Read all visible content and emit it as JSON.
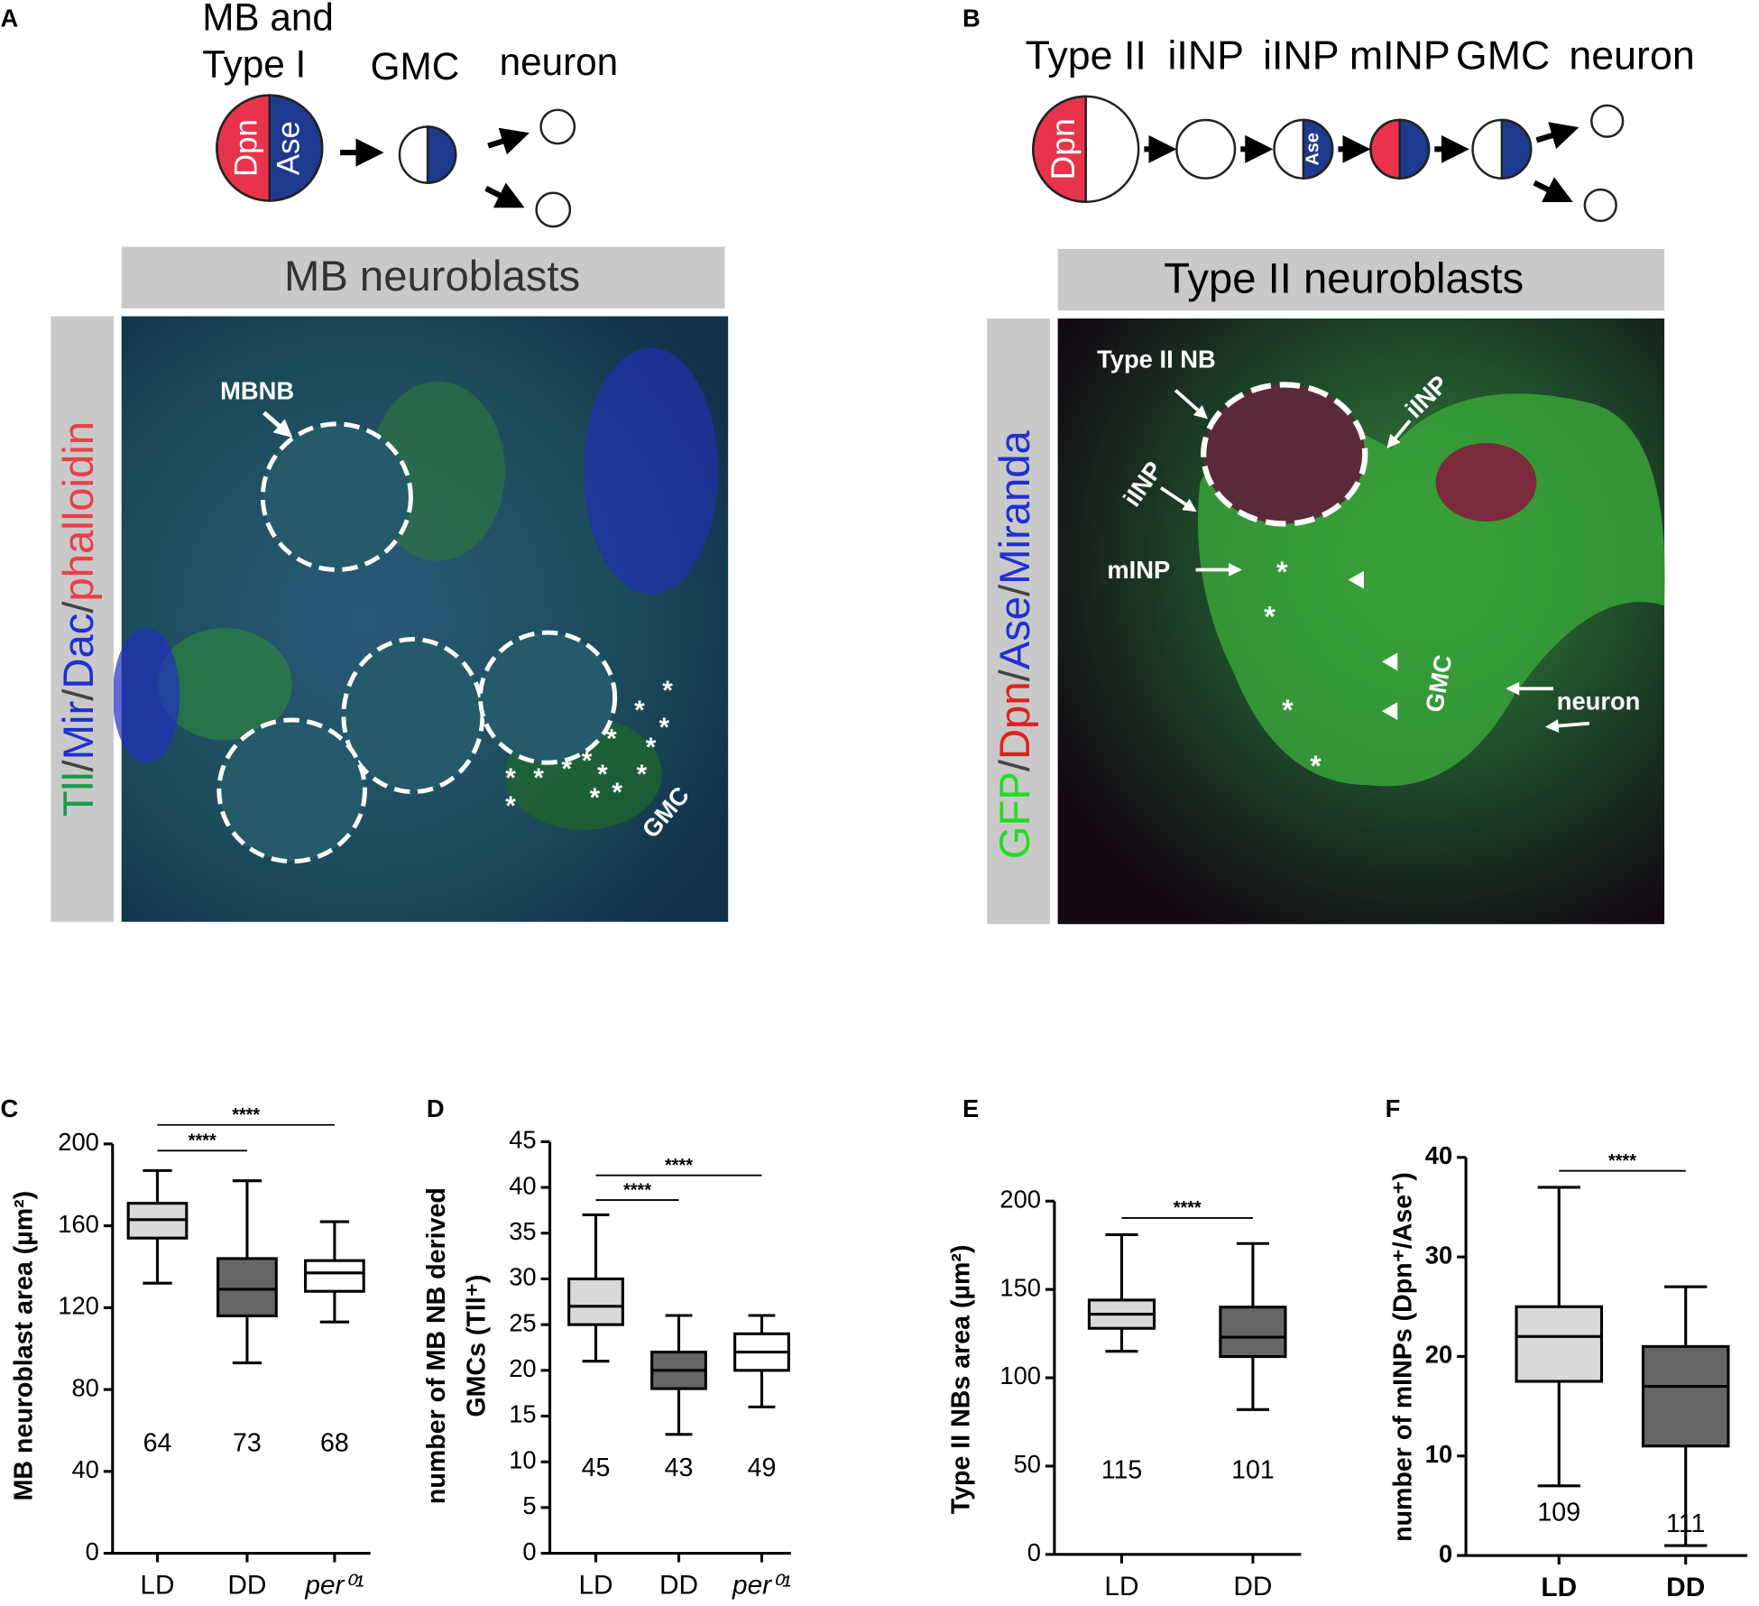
{
  "panels": {
    "A": {
      "letter": "A",
      "diagram": {
        "heading": [
          "MB and",
          "Type I"
        ],
        "cells": [
          "GMC",
          "neuron"
        ],
        "dpn": "Dpn",
        "ase": "Ase"
      },
      "banner": "MB neuroblasts",
      "stain": [
        {
          "text": "Tll",
          "color": "#1a9a4a"
        },
        {
          "text": "/",
          "color": "#444444"
        },
        {
          "text": "Mir",
          "color": "#1f2fd0"
        },
        {
          "text": "/",
          "color": "#444444"
        },
        {
          "text": "Dac",
          "color": "#1f2fd0"
        },
        {
          "text": "/",
          "color": "#444444"
        },
        {
          "text": "phalloidin",
          "color": "#e8404a"
        }
      ],
      "annotations": [
        "MBNB",
        "GMC"
      ],
      "marker": "*"
    },
    "B": {
      "letter": "B",
      "diagram": {
        "cells": [
          "Type II",
          "iINP",
          "iINP",
          "mINP",
          "GMC",
          "neuron"
        ],
        "dpn": "Dpn",
        "ase": "Ase"
      },
      "banner": "Type II neuroblasts",
      "stain": [
        {
          "text": "GFP",
          "color": "#22dd22"
        },
        {
          "text": "/",
          "color": "#444444"
        },
        {
          "text": "Dpn",
          "color": "#e02020"
        },
        {
          "text": "/",
          "color": "#444444"
        },
        {
          "text": "Ase",
          "color": "#2030d0"
        },
        {
          "text": "/",
          "color": "#444444"
        },
        {
          "text": "Miranda",
          "color": "#2030d0"
        }
      ],
      "annotations": [
        "Type II NB",
        "iINP",
        "iINP",
        "mINP",
        "GMC",
        "neuron"
      ],
      "marker": "*"
    }
  },
  "chart_data": [
    {
      "type": "box",
      "letter": "C",
      "ylabel": "MB neuroblast area (µm²)",
      "ylim": [
        0,
        200
      ],
      "yticks": [
        0,
        40,
        80,
        120,
        160,
        200
      ],
      "categories": [
        "LD",
        "DD",
        "per⁰¹"
      ],
      "boxes": [
        {
          "low": 132,
          "q1": 154,
          "median": 163,
          "q3": 171,
          "high": 187,
          "n": 64,
          "color": "#d9d9d9"
        },
        {
          "low": 93,
          "q1": 116,
          "median": 129,
          "q3": 144,
          "high": 182,
          "n": 73,
          "color": "#666666"
        },
        {
          "low": 113,
          "q1": 128,
          "median": 137,
          "q3": 143,
          "high": 162,
          "n": 68,
          "color": "#ffffff"
        }
      ],
      "significance": [
        {
          "between": [
            "LD",
            "DD"
          ],
          "label": "****"
        },
        {
          "between": [
            "LD",
            "per⁰¹"
          ],
          "label": "****"
        }
      ]
    },
    {
      "type": "box",
      "letter": "D",
      "ylabel": [
        "number of MB NB derived",
        "GMCs (Tll⁺)"
      ],
      "ylim": [
        0,
        45
      ],
      "yticks": [
        0,
        5,
        10,
        15,
        20,
        25,
        30,
        35,
        40,
        45
      ],
      "categories": [
        "LD",
        "DD",
        "per⁰¹"
      ],
      "boxes": [
        {
          "low": 21,
          "q1": 25,
          "median": 27,
          "q3": 30,
          "high": 37,
          "n": 45,
          "color": "#d9d9d9"
        },
        {
          "low": 13,
          "q1": 18,
          "median": 20,
          "q3": 22,
          "high": 26,
          "n": 43,
          "color": "#666666"
        },
        {
          "low": 16,
          "q1": 20,
          "median": 22,
          "q3": 24,
          "high": 26,
          "n": 49,
          "color": "#ffffff"
        }
      ],
      "significance": [
        {
          "between": [
            "LD",
            "DD"
          ],
          "label": "****"
        },
        {
          "between": [
            "LD",
            "per⁰¹"
          ],
          "label": "****"
        }
      ]
    },
    {
      "type": "box",
      "letter": "E",
      "ylabel": "Type II NBs area (µm²)",
      "ylim": [
        0,
        200
      ],
      "yticks": [
        0,
        50,
        100,
        150,
        200
      ],
      "categories": [
        "LD",
        "DD"
      ],
      "boxes": [
        {
          "low": 115,
          "q1": 128,
          "median": 136,
          "q3": 144,
          "high": 181,
          "n": 115,
          "color": "#d9d9d9"
        },
        {
          "low": 82,
          "q1": 112,
          "median": 123,
          "q3": 140,
          "high": 176,
          "n": 101,
          "color": "#666666"
        }
      ],
      "significance": [
        {
          "between": [
            "LD",
            "DD"
          ],
          "label": "****"
        }
      ]
    },
    {
      "type": "box",
      "letter": "F",
      "ylabel": "number of mINPs (Dpn⁺/Ase⁺)",
      "ylim": [
        0,
        40
      ],
      "yticks": [
        0,
        10,
        20,
        30,
        40
      ],
      "categories": [
        "LD",
        "DD"
      ],
      "boxes": [
        {
          "low": 7,
          "q1": 17.5,
          "median": 22,
          "q3": 25,
          "high": 37,
          "n": 109,
          "color": "#d9d9d9"
        },
        {
          "low": 1,
          "q1": 11,
          "median": 17,
          "q3": 21,
          "high": 27,
          "n": 111,
          "color": "#666666"
        }
      ],
      "significance": [
        {
          "between": [
            "LD",
            "DD"
          ],
          "label": "****"
        }
      ]
    }
  ]
}
